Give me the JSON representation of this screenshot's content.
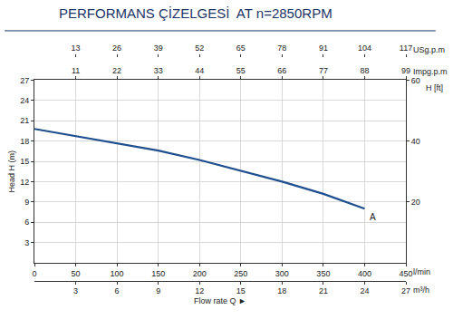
{
  "chart_data": {
    "type": "line",
    "title": "PERFORMANS ÇİZELGESİ  AT n=2850RPM",
    "x_label": "Flow rate Q ►",
    "x_unit_label": "l/min",
    "y_label": "Head H (m)",
    "y2_label": "H [ft]",
    "x": [
      0,
      50,
      100,
      150,
      200,
      250,
      300,
      350,
      400
    ],
    "series": [
      {
        "name": "A",
        "color": "#1f4f8f",
        "values": [
          19.8,
          18.7,
          17.6,
          16.6,
          15.2,
          13.6,
          12.0,
          10.2,
          8.0
        ]
      }
    ],
    "xlim": [
      0,
      450
    ],
    "xticks": [
      0,
      50,
      100,
      150,
      200,
      250,
      300,
      350,
      400,
      450
    ],
    "ylim": [
      0,
      27
    ],
    "yticks": [
      3,
      6,
      9,
      12,
      15,
      18,
      21,
      24,
      27
    ],
    "y2lim": [
      0,
      60
    ],
    "y2ticks": [
      20,
      40,
      60
    ],
    "secondary_x_axes": [
      {
        "label": "m³/h",
        "side": "bottom",
        "xlim": [
          0,
          27
        ],
        "xticks": [
          3,
          6,
          9,
          12,
          15,
          18,
          21,
          24,
          27
        ]
      },
      {
        "label": "Impg.p.m",
        "side": "top",
        "xlim": [
          0,
          99
        ],
        "xticks": [
          11,
          22,
          33,
          44,
          55,
          66,
          77,
          88,
          99
        ]
      },
      {
        "label": "USg.p.m",
        "side": "top",
        "xlim": [
          0,
          117
        ],
        "xticks": [
          13,
          26,
          39,
          52,
          65,
          78,
          91,
          104,
          117
        ]
      }
    ],
    "grid": true
  }
}
